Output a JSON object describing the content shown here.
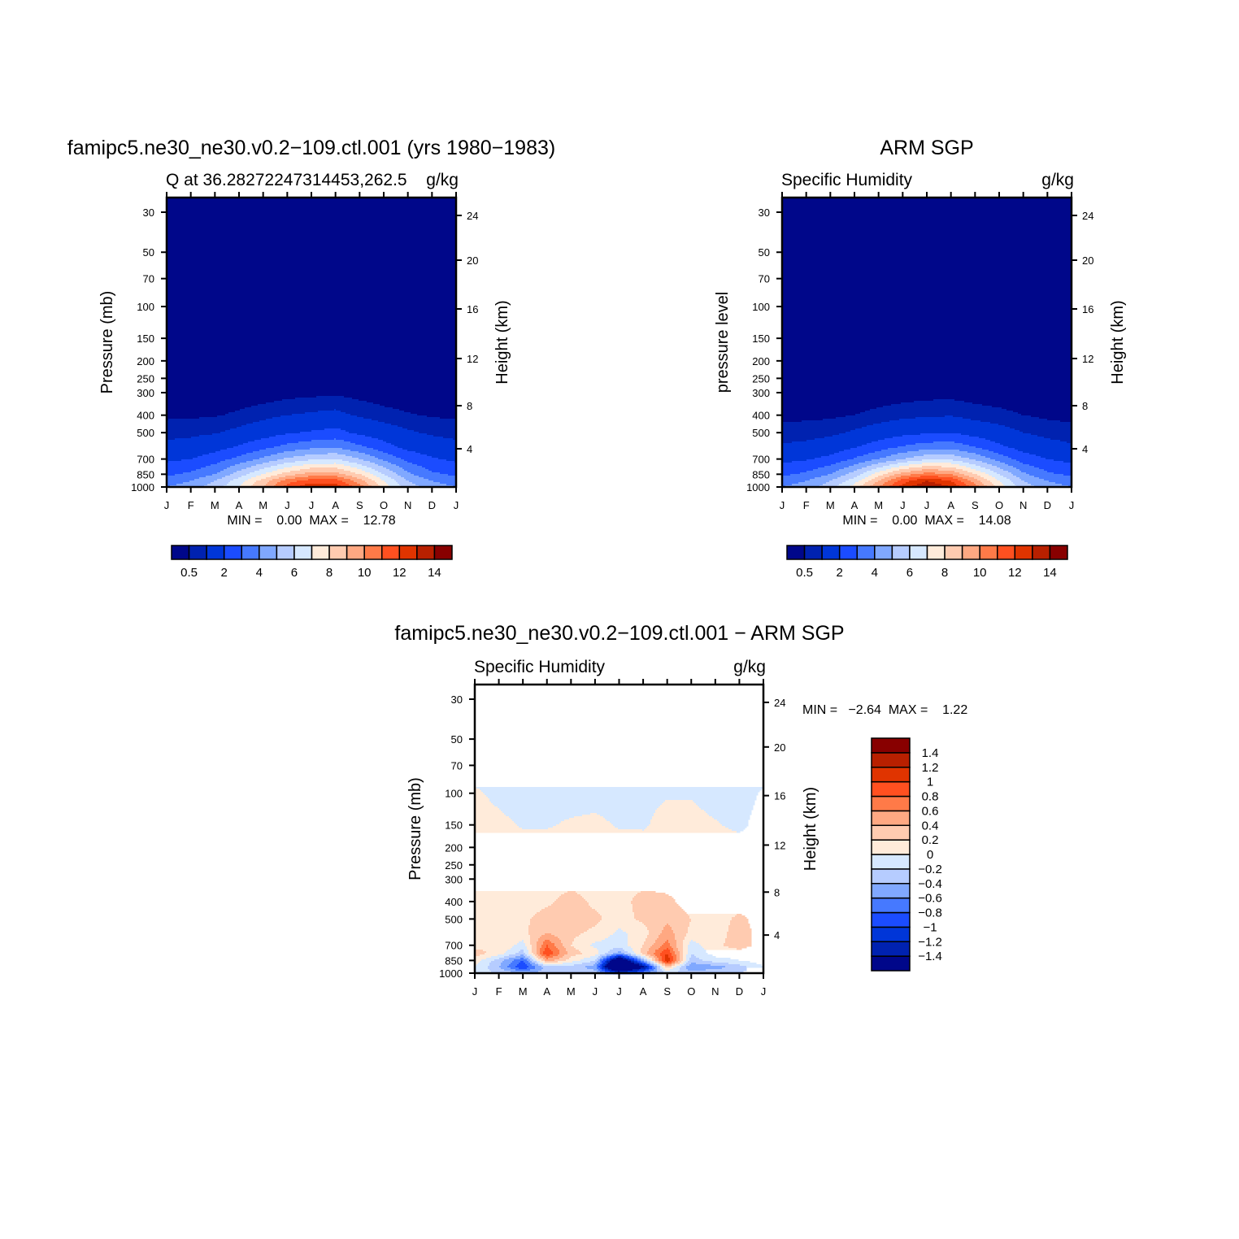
{
  "chart_data": [
    {
      "type": "heatmap",
      "id": "model",
      "title": "famipc5.ne30_ne30.v0.2−109.ctl.001 (yrs 1980−1983)",
      "subtitle_left": "Q at 36.28272247314453,262.5",
      "subtitle_right": "g/kg",
      "ylabel": "Pressure (mb)",
      "ylabel_right": "Height (km)",
      "xtick_labels": [
        "J",
        "F",
        "M",
        "A",
        "M",
        "J",
        "J",
        "A",
        "S",
        "O",
        "N",
        "D",
        "J"
      ],
      "ytick_values": [
        30,
        50,
        70,
        100,
        150,
        200,
        250,
        300,
        400,
        500,
        700,
        850,
        1000
      ],
      "height_ticks": [
        4,
        8,
        12,
        16,
        20,
        24
      ],
      "minmax_text": "MIN =    0.00  MAX =    12.78",
      "min": 0.0,
      "max": 12.78,
      "levels": [
        0.5,
        1,
        2,
        3,
        4,
        5,
        6,
        7,
        8,
        9,
        10,
        11,
        12,
        13,
        14
      ],
      "colorbar_labels": [
        "0.5",
        "2",
        "4",
        "6",
        "8",
        "10",
        "12",
        "14"
      ],
      "grid": {
        "pressure": [
          1000,
          925,
          850,
          700,
          600,
          500,
          400,
          300,
          200,
          100,
          30
        ],
        "values": [
          [
            4,
            4.5,
            5.5,
            7,
            9,
            11.5,
            12.8,
            12.5,
            10.5,
            7.5,
            5.5,
            4.5,
            4
          ],
          [
            3.5,
            4,
            5,
            6.5,
            8.5,
            10.5,
            11.5,
            11.5,
            9.5,
            7,
            5,
            4,
            3.5
          ],
          [
            2.8,
            3.2,
            4,
            5.5,
            7,
            8.5,
            9.5,
            9.5,
            8,
            6,
            4.2,
            3.2,
            2.8
          ],
          [
            1.8,
            2,
            2.5,
            3.3,
            4.2,
            5.2,
            5.8,
            6,
            5,
            3.8,
            2.7,
            2.1,
            1.8
          ],
          [
            1.2,
            1.3,
            1.6,
            2.1,
            2.7,
            3.3,
            3.7,
            3.9,
            3.2,
            2.4,
            1.7,
            1.4,
            1.2
          ],
          [
            0.8,
            0.85,
            0.95,
            1.2,
            1.5,
            1.9,
            2.1,
            2.3,
            1.8,
            1.4,
            1.1,
            0.9,
            0.8
          ],
          [
            0.4,
            0.42,
            0.45,
            0.6,
            0.8,
            1.0,
            1.1,
            1.2,
            0.9,
            0.7,
            0.55,
            0.45,
            0.4
          ],
          [
            0.12,
            0.12,
            0.12,
            0.15,
            0.2,
            0.3,
            0.35,
            0.4,
            0.3,
            0.2,
            0.15,
            0.12,
            0.12
          ],
          [
            0.03,
            0.03,
            0.03,
            0.03,
            0.03,
            0.03,
            0.03,
            0.03,
            0.03,
            0.03,
            0.03,
            0.03,
            0.03
          ],
          [
            0.005,
            0.005,
            0.005,
            0.005,
            0.005,
            0.005,
            0.005,
            0.005,
            0.005,
            0.005,
            0.005,
            0.005,
            0.005
          ],
          [
            0.003,
            0.003,
            0.003,
            0.003,
            0.003,
            0.003,
            0.003,
            0.003,
            0.003,
            0.003,
            0.003,
            0.003,
            0.003
          ]
        ]
      }
    },
    {
      "type": "heatmap",
      "id": "obs",
      "title": "ARM SGP",
      "subtitle_left": "Specific Humidity",
      "subtitle_right": "g/kg",
      "ylabel": "pressure level",
      "ylabel_right": "Height (km)",
      "xtick_labels": [
        "J",
        "F",
        "M",
        "A",
        "M",
        "J",
        "J",
        "A",
        "S",
        "O",
        "N",
        "D",
        "J"
      ],
      "ytick_values": [
        30,
        50,
        70,
        100,
        150,
        200,
        250,
        300,
        400,
        500,
        700,
        850,
        1000
      ],
      "height_ticks": [
        4,
        8,
        12,
        16,
        20,
        24
      ],
      "minmax_text": "MIN =    0.00  MAX =    14.08",
      "min": 0.0,
      "max": 14.08,
      "levels": [
        0.5,
        1,
        2,
        3,
        4,
        5,
        6,
        7,
        8,
        9,
        10,
        11,
        12,
        13,
        14
      ],
      "colorbar_labels": [
        "0.5",
        "2",
        "4",
        "6",
        "8",
        "10",
        "12",
        "14"
      ],
      "grid": {
        "pressure": [
          1000,
          925,
          850,
          700,
          600,
          500,
          400,
          300,
          200,
          100,
          30
        ],
        "values": [
          [
            4,
            4.5,
            5.5,
            7.5,
            10,
            12.5,
            14,
            13,
            10.5,
            7.5,
            5.5,
            4.5,
            4
          ],
          [
            3.5,
            4,
            5,
            6.5,
            9,
            11.5,
            13,
            12,
            9.5,
            7,
            5,
            4,
            3.5
          ],
          [
            2.8,
            3.2,
            4,
            5.5,
            7.5,
            9.5,
            10.5,
            10,
            8,
            6,
            4.2,
            3.2,
            2.8
          ],
          [
            1.7,
            1.9,
            2.3,
            3.1,
            4,
            5,
            5.8,
            5.8,
            4.8,
            3.6,
            2.5,
            2,
            1.7
          ],
          [
            1.1,
            1.2,
            1.4,
            1.9,
            2.5,
            3.1,
            3.5,
            3.6,
            3,
            2.2,
            1.6,
            1.3,
            1.1
          ],
          [
            0.7,
            0.75,
            0.85,
            1.1,
            1.4,
            1.7,
            1.9,
            2,
            1.6,
            1.3,
            1,
            0.8,
            0.7
          ],
          [
            0.35,
            0.38,
            0.4,
            0.5,
            0.65,
            0.8,
            0.9,
            0.95,
            0.75,
            0.65,
            0.5,
            0.4,
            0.35
          ],
          [
            0.1,
            0.1,
            0.1,
            0.15,
            0.2,
            0.25,
            0.3,
            0.3,
            0.25,
            0.2,
            0.15,
            0.1,
            0.1
          ],
          [
            0.03,
            0.03,
            0.03,
            0.03,
            0.03,
            0.03,
            0.03,
            0.03,
            0.03,
            0.03,
            0.03,
            0.03,
            0.03
          ],
          [
            0.005,
            0.005,
            0.005,
            0.005,
            0.005,
            0.005,
            0.005,
            0.005,
            0.005,
            0.005,
            0.005,
            0.005,
            0.005
          ],
          [
            0.003,
            0.003,
            0.003,
            0.003,
            0.003,
            0.003,
            0.003,
            0.003,
            0.003,
            0.003,
            0.003,
            0.003,
            0.003
          ]
        ]
      }
    },
    {
      "type": "heatmap",
      "id": "diff",
      "title": "famipc5.ne30_ne30.v0.2−109.ctl.001 − ARM SGP",
      "subtitle_left": "Specific Humidity",
      "subtitle_right": "g/kg",
      "ylabel": "Pressure (mb)",
      "ylabel_right": "Height (km)",
      "xtick_labels": [
        "J",
        "F",
        "M",
        "A",
        "M",
        "J",
        "J",
        "A",
        "S",
        "O",
        "N",
        "D",
        "J"
      ],
      "ytick_values": [
        30,
        50,
        70,
        100,
        150,
        200,
        250,
        300,
        400,
        500,
        700,
        850,
        1000
      ],
      "height_ticks": [
        4,
        8,
        12,
        16,
        20,
        24
      ],
      "minmax_text": "MIN =   −2.64  MAX =    1.22",
      "min": -2.64,
      "max": 1.22,
      "levels": [
        -1.4,
        -1.2,
        -1,
        -0.8,
        -0.6,
        -0.4,
        -0.2,
        0,
        0.2,
        0.4,
        0.6,
        0.8,
        1,
        1.2,
        1.4
      ],
      "colorbar_labels": [
        "−1.4",
        "−1.2",
        "−1",
        "−0.8",
        "−0.6",
        "−0.4",
        "−0.2",
        "0",
        "0.2",
        "0.4",
        "0.6",
        "0.8",
        "1",
        "1.2",
        "1.4"
      ],
      "grid": {
        "pressure": [
          1000,
          925,
          850,
          775,
          700,
          600,
          500,
          400,
          300,
          200,
          150,
          100,
          70,
          30
        ],
        "values": [
          [
            -0.1,
            -0.2,
            -0.4,
            -0.3,
            -0.2,
            -0.3,
            -1.0,
            -0.6,
            -0.2,
            -0.3,
            -0.2,
            -0.2,
            -0.1
          ],
          [
            0.0,
            -0.4,
            -1.0,
            -0.3,
            -0.3,
            -0.5,
            -2.6,
            -1.5,
            0.3,
            -0.6,
            -0.5,
            -0.3,
            0.0
          ],
          [
            0.1,
            -0.3,
            -0.8,
            0.5,
            0.1,
            -0.2,
            -2.0,
            -0.5,
            1.2,
            -0.3,
            -0.1,
            0.0,
            0.1
          ],
          [
            0.3,
            0.1,
            -0.3,
            1.0,
            0.3,
            0.1,
            -0.5,
            0.3,
            1.0,
            -0.2,
            0.1,
            0.1,
            0.05
          ],
          [
            0.1,
            0.2,
            -0.1,
            0.8,
            0.2,
            -0.05,
            -0.1,
            0.2,
            0.7,
            -0.1,
            0.15,
            0.3,
            0.1
          ],
          [
            0.1,
            0.15,
            0.15,
            0.4,
            0.25,
            0.15,
            -0.05,
            0.1,
            0.5,
            0.15,
            0.1,
            0.3,
            0.1
          ],
          [
            0.1,
            0.1,
            0.15,
            0.3,
            0.3,
            0.25,
            0.1,
            0.25,
            0.35,
            0.2,
            0.1,
            0.25,
            0.1
          ],
          [
            0.1,
            0.1,
            0.1,
            0.15,
            0.3,
            0.15,
            0.1,
            0.3,
            0.25,
            0.1,
            0.1,
            0.1,
            0.1
          ],
          [
            0.1,
            0.1,
            0.1,
            0.1,
            0.1,
            0.1,
            0.1,
            0.1,
            0.1,
            0.1,
            0.1,
            0.1,
            0.1
          ],
          [
            0.1,
            0.1,
            0.1,
            0.1,
            0.1,
            0.1,
            0.1,
            0.1,
            0.1,
            0.1,
            0.1,
            0.1,
            0.1
          ],
          [
            0.1,
            0.05,
            -0.02,
            -0.02,
            0.03,
            0.05,
            -0.02,
            -0.03,
            0.08,
            0.08,
            0.02,
            -0.05,
            0.1
          ],
          [
            0.03,
            -0.05,
            -0.1,
            -0.1,
            -0.1,
            -0.08,
            -0.1,
            -0.05,
            -0.02,
            -0.02,
            -0.1,
            -0.1,
            0.03
          ],
          [
            -0.1,
            -0.1,
            -0.1,
            -0.1,
            -0.1,
            -0.1,
            -0.1,
            -0.1,
            -0.1,
            -0.1,
            -0.1,
            -0.1,
            -0.1
          ],
          [
            -0.1,
            -0.1,
            -0.1,
            -0.1,
            -0.1,
            -0.1,
            -0.1,
            -0.1,
            -0.1,
            -0.1,
            -0.1,
            -0.1,
            -0.1
          ]
        ]
      }
    }
  ],
  "colors": [
    "#00078a",
    "#0022b0",
    "#0036d8",
    "#1b4cff",
    "#4679ff",
    "#80a8ff",
    "#b6ccff",
    "#d6e8ff",
    "#ffebda",
    "#ffcbb0",
    "#ffa882",
    "#ff7a48",
    "#ff5020",
    "#e03400",
    "#b82000",
    "#880000"
  ]
}
